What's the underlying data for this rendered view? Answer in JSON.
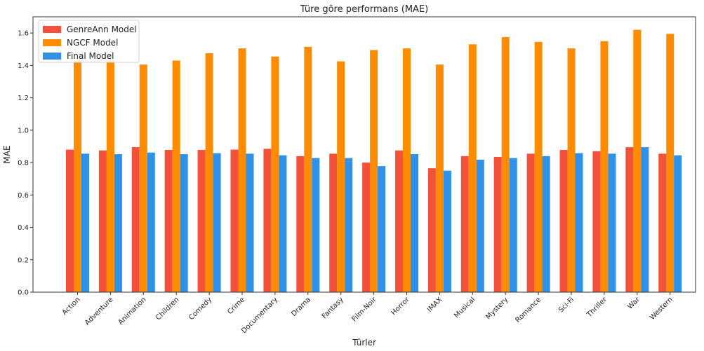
{
  "chart_data": {
    "type": "bar",
    "title": "Türe göre performans (MAE)",
    "xlabel": "Türler",
    "ylabel": "MAE",
    "ylim": [
      0,
      1.7
    ],
    "yticks": [
      "0.0",
      "0.2",
      "0.4",
      "0.6",
      "0.8",
      "1.0",
      "1.2",
      "1.4",
      "1.6"
    ],
    "grid": false,
    "legend_position": "top-left",
    "categories": [
      "Action",
      "Adventure",
      "Animation",
      "Children",
      "Comedy",
      "Crime",
      "Documentary",
      "Drama",
      "Fantasy",
      "Film-Noir",
      "Horror",
      "IMAX",
      "Musical",
      "Mystery",
      "Romance",
      "Sci-Fi",
      "Thriller",
      "War",
      "Western"
    ],
    "series": [
      {
        "name": "GenreAnn Model",
        "color": "#f4513a",
        "values": [
          0.88,
          0.875,
          0.895,
          0.878,
          0.878,
          0.88,
          0.885,
          0.84,
          0.855,
          0.8,
          0.875,
          0.765,
          0.84,
          0.835,
          0.855,
          0.878,
          0.87,
          0.895,
          0.855
        ]
      },
      {
        "name": "NGCF Model",
        "color": "#ff8c00",
        "values": [
          1.43,
          1.43,
          1.405,
          1.43,
          1.475,
          1.505,
          1.455,
          1.515,
          1.425,
          1.495,
          1.505,
          1.405,
          1.53,
          1.575,
          1.545,
          1.505,
          1.55,
          1.62,
          1.595
        ]
      },
      {
        "name": "Final Model",
        "color": "#2f92e8",
        "values": [
          0.855,
          0.852,
          0.862,
          0.852,
          0.858,
          0.855,
          0.845,
          0.828,
          0.828,
          0.778,
          0.852,
          0.75,
          0.818,
          0.828,
          0.84,
          0.858,
          0.855,
          0.895,
          0.845
        ]
      }
    ]
  }
}
